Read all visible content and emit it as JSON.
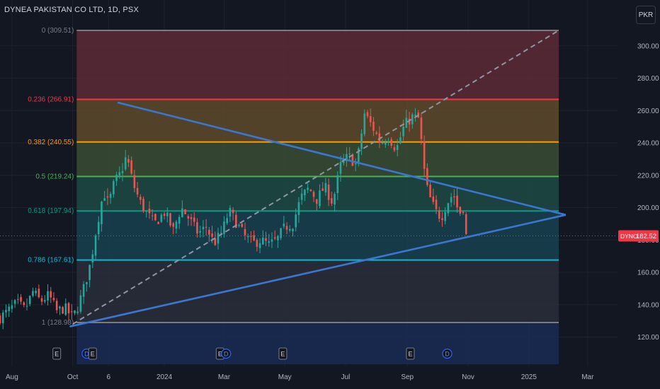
{
  "header": {
    "symbol_title": "DYNEA PAKISTAN CO LTD, 1D, PSX",
    "currency_badge": "PKR"
  },
  "colors": {
    "background": "#131722",
    "up": "#26a69a",
    "down": "#ef5350",
    "trendline": "#3b76d0",
    "dashed": "#8f95a3",
    "price_marker": "#f23645"
  },
  "chart_data": {
    "type": "candlestick",
    "title": "DYNEA PAKISTAN CO LTD, 1D, PSX",
    "ylim": [
      112,
      318
    ],
    "y_ticks": [
      120,
      140,
      160,
      180,
      200,
      220,
      240,
      260,
      280,
      300
    ],
    "y_tick_labels": [
      "120.00",
      "140.00",
      "160.00",
      "180.00",
      "200.00",
      "220.00",
      "240.00",
      "260.00",
      "280.00",
      "300.00"
    ],
    "x_range": [
      "2023-07-20",
      "2025-03-31"
    ],
    "x_ticks": [
      {
        "date": "2023-08-01",
        "label": "Aug"
      },
      {
        "date": "2023-10-01",
        "label": "Oct"
      },
      {
        "date": "2023-11-06",
        "label": "6"
      },
      {
        "date": "2024-01-01",
        "label": "2024"
      },
      {
        "date": "2024-03-01",
        "label": "Mar"
      },
      {
        "date": "2024-05-01",
        "label": "May"
      },
      {
        "date": "2024-07-01",
        "label": "Jul"
      },
      {
        "date": "2024-09-01",
        "label": "Sep"
      },
      {
        "date": "2024-11-01",
        "label": "Nov"
      },
      {
        "date": "2025-01-01",
        "label": "2025"
      },
      {
        "date": "2025-03-01",
        "label": "Mar"
      }
    ],
    "last_price": 182.52,
    "last_price_label": "182.52",
    "last_symbol": "DYNO",
    "fibonacci": {
      "start_date": "2023-10-05",
      "end_date": "2025-01-31",
      "levels": [
        {
          "ratio": "0",
          "price": 309.51,
          "label": "0 (309.51)",
          "color": "#787b86",
          "fill": "#5d2a36"
        },
        {
          "ratio": "0.236",
          "price": 266.91,
          "label": "0.236 (266.91)",
          "color": "#f23645",
          "fill": "#5e4a2c"
        },
        {
          "ratio": "0.382",
          "price": 240.55,
          "label": "0.382 (240.55)",
          "color": "#ff9800",
          "fill": "#3a4d32"
        },
        {
          "ratio": "0.5",
          "price": 219.24,
          "label": "0.5 (219.24)",
          "color": "#4caf50",
          "fill": "#1f4a45"
        },
        {
          "ratio": "0.618",
          "price": 197.94,
          "label": "0.618 (197.94)",
          "color": "#089981",
          "fill": "#18414f"
        },
        {
          "ratio": "0.786",
          "price": 167.61,
          "label": "0.786 (167.61)",
          "color": "#00bcd4",
          "fill": "#2a2e39"
        },
        {
          "ratio": "1",
          "price": 128.98,
          "label": "1 (128.98)",
          "color": "#787b86",
          "fill": "#1a2b55"
        }
      ]
    },
    "trendlines": [
      {
        "name": "upper",
        "from": {
          "date": "2023-11-15",
          "price": 265
        },
        "to": {
          "date": "2025-02-07",
          "price": 195.5
        },
        "style": "solid"
      },
      {
        "name": "lower",
        "from": {
          "date": "2023-09-28",
          "price": 126.5
        },
        "to": {
          "date": "2025-02-07",
          "price": 195.5
        },
        "style": "solid"
      },
      {
        "name": "extension",
        "from": {
          "date": "2023-10-01",
          "price": 128
        },
        "to": {
          "date": "2025-01-31",
          "price": 309.5
        },
        "style": "dashed"
      }
    ],
    "events": [
      {
        "date": "2023-09-15",
        "label": "E",
        "type": "earnings"
      },
      {
        "date": "2023-10-15",
        "label": "D",
        "type": "dividend"
      },
      {
        "date": "2023-10-21",
        "label": "E",
        "type": "earnings"
      },
      {
        "date": "2024-02-26",
        "label": "E",
        "type": "earnings"
      },
      {
        "date": "2024-03-03",
        "label": "D",
        "type": "dividend"
      },
      {
        "date": "2024-04-29",
        "label": "E",
        "type": "earnings"
      },
      {
        "date": "2024-09-04",
        "label": "E",
        "type": "earnings"
      },
      {
        "date": "2024-10-11",
        "label": "D",
        "type": "dividend"
      }
    ],
    "price_path": [
      [
        "2023-07-20",
        132
      ],
      [
        "2023-07-28",
        136
      ],
      [
        "2023-08-06",
        141
      ],
      [
        "2023-08-14",
        137
      ],
      [
        "2023-08-22",
        148
      ],
      [
        "2023-08-30",
        142
      ],
      [
        "2023-09-07",
        146
      ],
      [
        "2023-09-15",
        136
      ],
      [
        "2023-09-23",
        138
      ],
      [
        "2023-10-01",
        132
      ],
      [
        "2023-10-07",
        140
      ],
      [
        "2023-10-13",
        152
      ],
      [
        "2023-10-19",
        166
      ],
      [
        "2023-10-25",
        188
      ],
      [
        "2023-11-01",
        210
      ],
      [
        "2023-11-06",
        202
      ],
      [
        "2023-11-12",
        216
      ],
      [
        "2023-11-18",
        221
      ],
      [
        "2023-11-24",
        232
      ],
      [
        "2023-12-01",
        214
      ],
      [
        "2023-12-08",
        203
      ],
      [
        "2023-12-15",
        196
      ],
      [
        "2023-12-22",
        190
      ],
      [
        "2024-01-01",
        197
      ],
      [
        "2024-01-10",
        186
      ],
      [
        "2024-01-18",
        200
      ],
      [
        "2024-01-26",
        193
      ],
      [
        "2024-02-04",
        184
      ],
      [
        "2024-02-12",
        188
      ],
      [
        "2024-02-20",
        178
      ],
      [
        "2024-02-28",
        185
      ],
      [
        "2024-03-06",
        198
      ],
      [
        "2024-03-14",
        190
      ],
      [
        "2024-03-22",
        182
      ],
      [
        "2024-03-30",
        178
      ],
      [
        "2024-04-07",
        180
      ],
      [
        "2024-04-15",
        177
      ],
      [
        "2024-04-23",
        180
      ],
      [
        "2024-05-01",
        188
      ],
      [
        "2024-05-09",
        190
      ],
      [
        "2024-05-17",
        206
      ],
      [
        "2024-05-25",
        212
      ],
      [
        "2024-06-02",
        205
      ],
      [
        "2024-06-10",
        213
      ],
      [
        "2024-06-18",
        203
      ],
      [
        "2024-06-26",
        226
      ],
      [
        "2024-07-04",
        232
      ],
      [
        "2024-07-12",
        226
      ],
      [
        "2024-07-20",
        258
      ],
      [
        "2024-07-28",
        250
      ],
      [
        "2024-08-05",
        240
      ],
      [
        "2024-08-13",
        244
      ],
      [
        "2024-08-21",
        236
      ],
      [
        "2024-08-29",
        251
      ],
      [
        "2024-09-06",
        256
      ],
      [
        "2024-09-12",
        255
      ],
      [
        "2024-09-16",
        236
      ],
      [
        "2024-09-19",
        216
      ],
      [
        "2024-09-23",
        207
      ],
      [
        "2024-09-29",
        198
      ],
      [
        "2024-10-05",
        194
      ],
      [
        "2024-10-11",
        203
      ],
      [
        "2024-10-17",
        209
      ],
      [
        "2024-10-23",
        196
      ],
      [
        "2024-10-27",
        200
      ],
      [
        "2024-10-30",
        182.5
      ]
    ]
  }
}
